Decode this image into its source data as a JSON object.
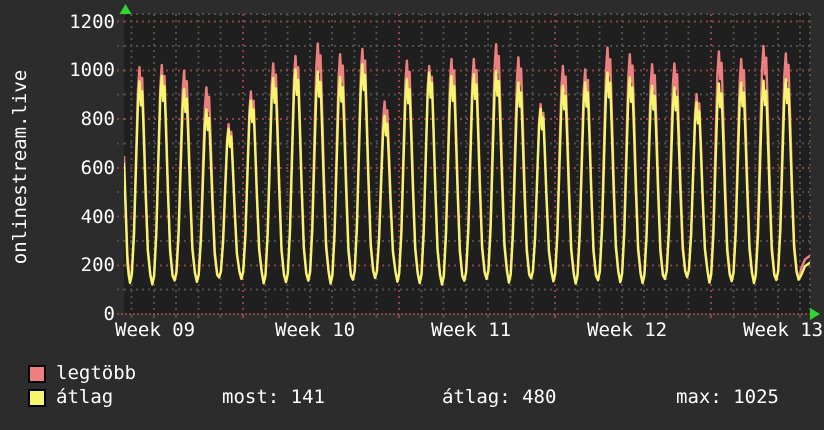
{
  "title": {
    "text": "onlinestream.live"
  },
  "colors": {
    "window_bg": "#2c2c2c",
    "plot_bg": "#1f1f1f",
    "grid_minor": "#4f4f4f",
    "grid_major": "#8f4242",
    "axis_arrow": "#2fd62f",
    "text": "#ffffff",
    "series_max": "#ee7f7f",
    "series_avg": "#f5f56e"
  },
  "y_axis": {
    "tick_labels": [
      "1200",
      "1000",
      "800",
      "600",
      "400",
      "200",
      "0"
    ],
    "tick_values": [
      1200,
      1000,
      800,
      600,
      400,
      200,
      0
    ]
  },
  "x_axis": {
    "tick_labels": [
      "Week 09",
      "Week 10",
      "Week 11",
      "Week 12",
      "Week 13"
    ]
  },
  "legend": {
    "items": [
      {
        "label": "legtöbb",
        "color": "#ee7f7f"
      },
      {
        "label": "átlag",
        "color": "#f5f56e"
      }
    ]
  },
  "stats": {
    "items": [
      {
        "label": "most",
        "value": "141"
      },
      {
        "label": "átlag",
        "value": "480"
      },
      {
        "label": "max",
        "value": "1025"
      }
    ]
  },
  "chart_data": {
    "type": "line",
    "title": "onlinestream.live",
    "xlabel": "",
    "ylabel": "",
    "ylim": [
      0,
      1230
    ],
    "y_grid_step": 100,
    "y_major_step": 200,
    "x_span_days": 30.6,
    "x_tick_labels": [
      "Week 09",
      "Week 10",
      "Week 11",
      "Week 12",
      "Week 13"
    ],
    "grid": true,
    "legend_position": "bottom-left",
    "series": [
      {
        "name": "legtöbb",
        "color": "#ee7f7f",
        "daily_peaks": [
          1013,
          1022,
          998,
          930,
          779,
          913,
          1028,
          1059,
          1110,
          1066,
          1087,
          872,
          1039,
          1018,
          1046,
          1046,
          1107,
          1053,
          861,
          1018,
          1004,
          1093,
          1066,
          1025,
          1028,
          902,
          1077,
          1046,
          1100,
          1069
        ]
      },
      {
        "name": "átlag",
        "color": "#f5f56e",
        "daily_peaks": [
          955,
          977,
          923,
          840,
          759,
          875,
          968,
          1004,
          995,
          973,
          1025,
          813,
          964,
          991,
          977,
          984,
          998,
          950,
          841,
          936,
          950,
          991,
          971,
          936,
          930,
          868,
          946,
          950,
          957,
          964
        ]
      }
    ],
    "daily_troughs": [
      128,
      122,
      138,
      132,
      150,
      144,
      126,
      131,
      137,
      125,
      141,
      148,
      133,
      127,
      121,
      137,
      144,
      129,
      147,
      134,
      125,
      139,
      131,
      127,
      144,
      151,
      129,
      135,
      127,
      140,
      141
    ],
    "day_shape": [
      [
        0,
        0
      ],
      [
        1.8,
        0.04
      ],
      [
        4,
        0.24
      ],
      [
        6.5,
        0.66
      ],
      [
        8,
        0.9
      ],
      [
        9.5,
        1
      ],
      [
        10.8,
        0.88
      ],
      [
        12.2,
        0.95
      ],
      [
        13.7,
        0.74
      ],
      [
        15.5,
        0.46
      ],
      [
        17.8,
        0.16
      ],
      [
        20.3,
        0.04
      ]
    ],
    "lead_in_values": [
      620,
      420,
      215,
      155
    ],
    "stats": {
      "most": 141,
      "atlag": 480,
      "max": 1025
    }
  }
}
